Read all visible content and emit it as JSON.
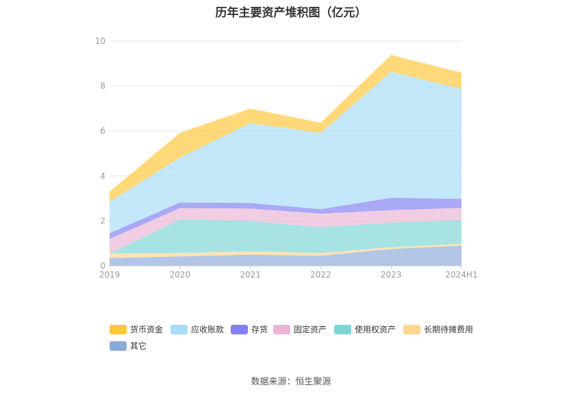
{
  "chart_data": {
    "type": "area",
    "stacked": true,
    "title": "历年主要资产堆积图（亿元）",
    "categories": [
      "2019",
      "2020",
      "2021",
      "2022",
      "2023",
      "2024H1"
    ],
    "ylim": [
      0,
      10
    ],
    "yticks": [
      "0",
      "2",
      "4",
      "6",
      "8",
      "10"
    ],
    "series": [
      {
        "name": "其它",
        "color": "#8eaadb",
        "values": [
          0.35,
          0.42,
          0.5,
          0.45,
          0.75,
          0.9
        ]
      },
      {
        "name": "长期待摊费用",
        "color": "#ffd591",
        "values": [
          0.2,
          0.15,
          0.15,
          0.12,
          0.08,
          0.08
        ]
      },
      {
        "name": "使用权资产",
        "color": "#7fd6d6",
        "values": [
          0.0,
          1.5,
          1.35,
          1.15,
          1.1,
          1.05
        ]
      },
      {
        "name": "固定资产",
        "color": "#ebb5d6",
        "values": [
          0.65,
          0.5,
          0.55,
          0.6,
          0.55,
          0.55
        ]
      },
      {
        "name": "存货",
        "color": "#8080f2",
        "values": [
          0.25,
          0.25,
          0.25,
          0.2,
          0.55,
          0.4
        ]
      },
      {
        "name": "应收账款",
        "color": "#a8dcf7",
        "values": [
          1.4,
          2.0,
          3.55,
          3.4,
          5.6,
          4.9
        ]
      },
      {
        "name": "货币资金",
        "color": "#ffc73a",
        "values": [
          0.45,
          1.1,
          0.65,
          0.45,
          0.75,
          0.72
        ]
      }
    ],
    "legend_order": [
      "货币资金",
      "应收账款",
      "存货",
      "固定资产",
      "使用权资产",
      "长期待摊费用",
      "其它"
    ],
    "source": "数据来源：恒生聚源"
  }
}
